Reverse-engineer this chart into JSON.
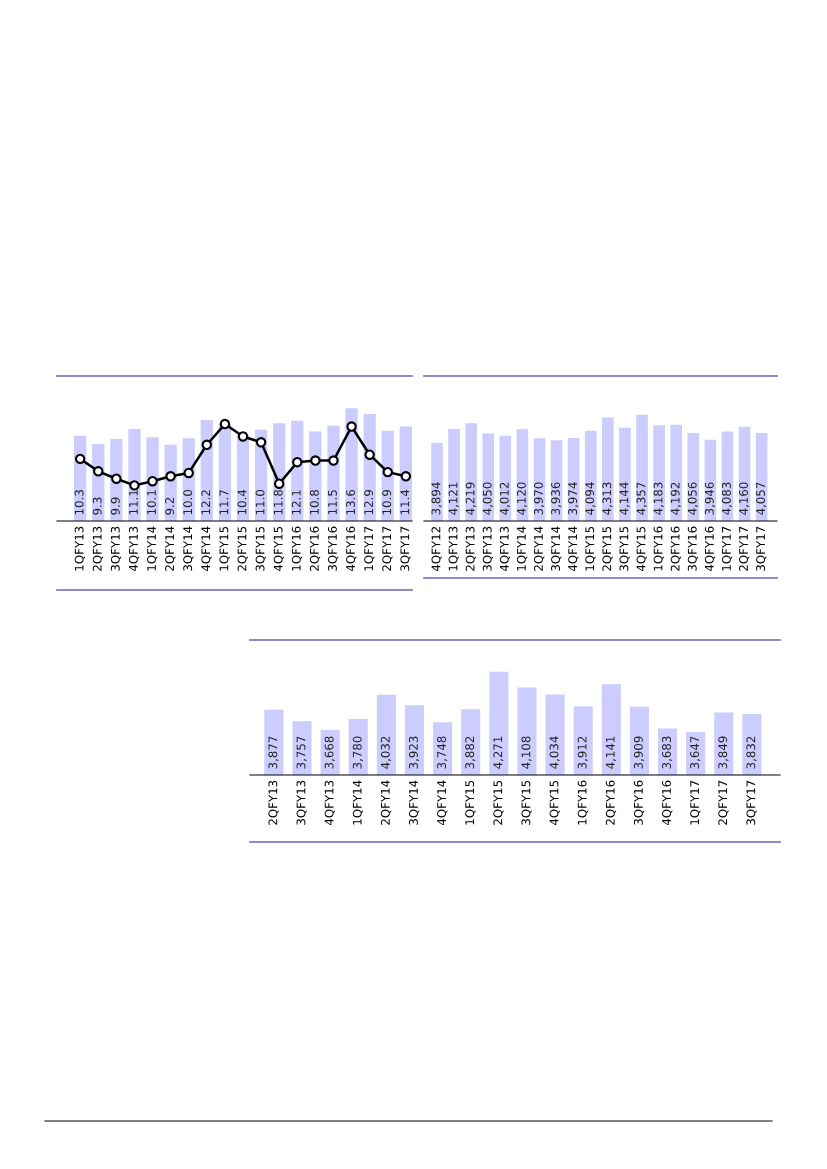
{
  "chart_data": [
    {
      "type": "bar",
      "categories": [
        "1QFY13",
        "2QFY13",
        "3QFY13",
        "4QFY13",
        "1QFY14",
        "2QFY14",
        "3QFY14",
        "4QFY14",
        "1QFY15",
        "2QFY15",
        "3QFY15",
        "4QFY15",
        "1QFY16",
        "2QFY16",
        "3QFY16",
        "4QFY16",
        "1QFY17",
        "2QFY17",
        "3QFY17"
      ],
      "ylim": [
        0,
        17.5
      ],
      "tick_labels": "x",
      "series": [
        {
          "type": "bar",
          "color": "#ccccff",
          "values": [
            10.3,
            9.3,
            9.9,
            11.1,
            10.1,
            9.2,
            10.0,
            12.2,
            11.7,
            10.4,
            11.0,
            11.8,
            12.1,
            10.8,
            11.5,
            13.6,
            12.9,
            10.9,
            11.4
          ],
          "value_labels": [
            "10.3",
            "9.3",
            "9.9",
            "11.1",
            "10.1",
            "9.2",
            "10.0",
            "12.2",
            "11.7",
            "10.4",
            "11.0",
            "11.8",
            "12.1",
            "10.8",
            "11.5",
            "13.6",
            "12.9",
            "10.9",
            "11.4"
          ]
        },
        {
          "type": "line",
          "color": "#000000",
          "marker": "circle",
          "line_style": "solid",
          "values": [
            7.5,
            6.0,
            5.1,
            4.3,
            4.8,
            5.4,
            5.8,
            9.2,
            11.7,
            10.2,
            9.5,
            4.5,
            7.1,
            7.3,
            7.3,
            11.4,
            8.0,
            5.9,
            5.4
          ]
        }
      ]
    },
    {
      "type": "bar",
      "categories": [
        "4QFY12",
        "1QFY13",
        "2QFY13",
        "3QFY13",
        "4QFY13",
        "1QFY14",
        "2QFY14",
        "3QFY14",
        "4QFY14",
        "1QFY15",
        "2QFY15",
        "3QFY15",
        "4QFY15",
        "1QFY16",
        "2QFY16",
        "3QFY16",
        "4QFY16",
        "1QFY17",
        "2QFY17",
        "3QFY17"
      ],
      "ylim": [
        2600,
        5000
      ],
      "tick_labels": "x",
      "series": [
        {
          "type": "bar",
          "color": "#ccccff",
          "values": [
            3894,
            4121,
            4219,
            4050,
            4012,
            4120,
            3970,
            3936,
            3974,
            4094,
            4313,
            4144,
            4357,
            4183,
            4192,
            4056,
            3946,
            4083,
            4160,
            4057
          ],
          "value_labels": [
            "3,894",
            "4,121",
            "4,219",
            "4,050",
            "4,012",
            "4,120",
            "3,970",
            "3,936",
            "3,974",
            "4,094",
            "4,313",
            "4,144",
            "4,357",
            "4,183",
            "4,192",
            "4,056",
            "3,946",
            "4,083",
            "4,160",
            "4,057"
          ]
        }
      ]
    },
    {
      "type": "bar",
      "categories": [
        "2QFY13",
        "3QFY13",
        "4QFY13",
        "1QFY14",
        "2QFY14",
        "3QFY14",
        "4QFY14",
        "1QFY15",
        "2QFY15",
        "3QFY15",
        "4QFY15",
        "1QFY16",
        "2QFY16",
        "3QFY16",
        "4QFY16",
        "1QFY17",
        "2QFY17",
        "3QFY17"
      ],
      "ylim": [
        3200,
        4600
      ],
      "tick_labels": "x",
      "series": [
        {
          "type": "bar",
          "color": "#ccccff",
          "values": [
            3877,
            3757,
            3668,
            3780,
            4032,
            3923,
            3748,
            3882,
            4271,
            4108,
            4034,
            3912,
            4141,
            3909,
            3683,
            3647,
            3849,
            3832
          ],
          "value_labels": [
            "3,877",
            "3,757",
            "3,668",
            "3,780",
            "4,032",
            "3,923",
            "3,748",
            "3,882",
            "4,271",
            "4,108",
            "4,034",
            "3,912",
            "4,141",
            "3,909",
            "3,683",
            "3,647",
            "3,849",
            "3,832"
          ]
        }
      ]
    }
  ]
}
